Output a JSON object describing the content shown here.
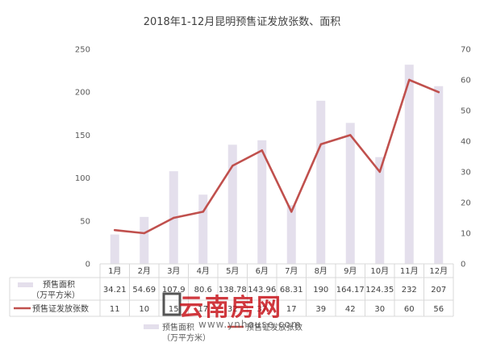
{
  "chart_data": {
    "type": "bar+line",
    "title": "2018年1-12月昆明预售证发放张数、面积",
    "categories": [
      "1月",
      "2月",
      "3月",
      "4月",
      "5月",
      "6月",
      "7月",
      "8月",
      "9月",
      "10月",
      "11月",
      "12月"
    ],
    "series": [
      {
        "name": "预售面积\n（万平方米）",
        "name_lines": [
          "预售面积",
          "（万平方米）"
        ],
        "type": "bar",
        "axis": "left",
        "color": "#e4dfec",
        "values": [
          34.21,
          54.69,
          107.9,
          80.6,
          138.78,
          143.96,
          68.31,
          190,
          164.17,
          124.35,
          232,
          207
        ],
        "labels": [
          "34.21",
          "54.69",
          "107.9",
          "80.6",
          "138.78",
          "143.96",
          "68.31",
          "190",
          "164.17",
          "124.35",
          "232",
          "207"
        ]
      },
      {
        "name": "预售证发放张数",
        "type": "line",
        "axis": "right",
        "color": "#c0504d",
        "values": [
          11,
          10,
          15,
          17,
          32,
          37,
          17,
          39,
          42,
          30,
          60,
          56
        ],
        "labels": [
          "11",
          "10",
          "15",
          "17",
          "32",
          "37",
          "17",
          "39",
          "42",
          "30",
          "60",
          "56"
        ]
      }
    ],
    "y_left": {
      "min": 0,
      "max": 250,
      "ticks": [
        0,
        50,
        100,
        150,
        200,
        250
      ]
    },
    "y_right": {
      "min": 0,
      "max": 70,
      "ticks": [
        0,
        10,
        20,
        30,
        40,
        50,
        60,
        70
      ]
    },
    "grid": false,
    "data_table": true,
    "legend_position": "bottom"
  },
  "watermark": {
    "main": "云南房网",
    "url": "www.ynhouse.com"
  }
}
